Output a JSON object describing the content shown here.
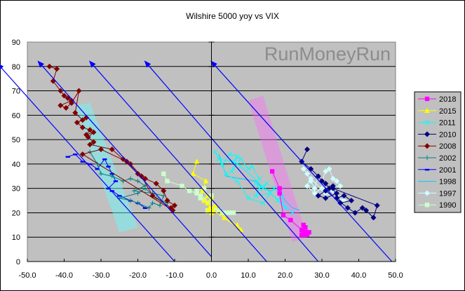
{
  "chart_data": {
    "type": "scatter",
    "title": "Wilshire 5000 yoy vs VIX",
    "xlabel": "",
    "ylabel": "",
    "xlim": [
      -50,
      50
    ],
    "ylim": [
      0,
      90
    ],
    "x_ticks": [
      "-50.0",
      "-40.0",
      "-30.0",
      "-20.0",
      "-10.0",
      "0.0",
      "10.0",
      "20.0",
      "30.0",
      "40.0",
      "50.0"
    ],
    "y_ticks": [
      "0",
      "10",
      "20",
      "30",
      "40",
      "50",
      "60",
      "70",
      "80",
      "90"
    ],
    "grid": "horizontal major gridlines",
    "legend_position": "right",
    "watermark": "RunMoneyRun",
    "background": "#c0c0c0",
    "series": [
      {
        "name": "2018",
        "color": "#ff00ff",
        "marker": "square",
        "points": [
          [
            16.5,
            37
          ],
          [
            18.5,
            30
          ],
          [
            18.5,
            28
          ],
          [
            19.5,
            19
          ],
          [
            21.5,
            17
          ],
          [
            24.5,
            13
          ],
          [
            24.5,
            11
          ],
          [
            25,
            15
          ],
          [
            25.5,
            12
          ],
          [
            26,
            11
          ],
          [
            25.5,
            14
          ],
          [
            26.5,
            12
          ],
          [
            25,
            11
          ]
        ]
      },
      {
        "name": "2015",
        "color": "#ffff00",
        "marker": "triangle",
        "points": [
          [
            -4,
            41
          ],
          [
            -5,
            36
          ],
          [
            -1.5,
            33
          ],
          [
            -2.5,
            29
          ],
          [
            -1,
            27
          ],
          [
            -2,
            25
          ],
          [
            -1,
            24
          ],
          [
            0,
            26
          ],
          [
            0,
            22
          ],
          [
            -1,
            21
          ],
          [
            0,
            20
          ],
          [
            1,
            23
          ],
          [
            3.5,
            18
          ],
          [
            7,
            15
          ],
          [
            8,
            13
          ],
          [
            -0.5,
            22
          ],
          [
            0.5,
            21
          ]
        ]
      },
      {
        "name": "2011",
        "color": "#00ffff",
        "marker": "x",
        "points": [
          [
            1,
            45
          ],
          [
            3,
            40
          ],
          [
            5,
            44
          ],
          [
            7,
            43
          ],
          [
            5.5,
            37
          ],
          [
            8,
            42
          ],
          [
            10,
            38
          ],
          [
            11,
            39
          ],
          [
            13,
            34
          ],
          [
            12,
            32
          ],
          [
            14,
            30
          ],
          [
            15,
            32
          ],
          [
            13,
            30
          ],
          [
            12,
            27
          ],
          [
            16,
            28
          ],
          [
            18,
            25
          ],
          [
            20,
            22
          ],
          [
            19,
            27
          ],
          [
            17,
            30
          ],
          [
            14,
            24
          ],
          [
            10,
            26
          ],
          [
            7,
            33
          ],
          [
            4,
            36
          ],
          [
            2,
            42
          ],
          [
            6,
            41
          ],
          [
            8,
            39
          ],
          [
            22,
            20
          ]
        ]
      },
      {
        "name": "2010",
        "color": "#000080",
        "marker": "diamond",
        "points": [
          [
            26,
            46
          ],
          [
            24.5,
            41
          ],
          [
            27,
            38
          ],
          [
            29,
            35
          ],
          [
            30,
            33
          ],
          [
            31,
            32
          ],
          [
            32,
            30
          ],
          [
            33,
            31
          ],
          [
            34,
            26
          ],
          [
            36,
            27
          ],
          [
            38,
            25
          ],
          [
            35,
            24
          ],
          [
            34,
            28
          ],
          [
            31,
            26
          ],
          [
            29,
            27
          ],
          [
            31,
            29
          ],
          [
            37,
            22
          ],
          [
            39,
            20
          ],
          [
            41,
            22
          ],
          [
            42,
            21
          ],
          [
            44,
            18
          ],
          [
            45,
            23
          ],
          [
            33,
            30
          ]
        ]
      },
      {
        "name": "2008",
        "color": "#800000",
        "marker": "diamond",
        "points": [
          [
            -44,
            80
          ],
          [
            -42,
            79
          ],
          [
            -43,
            74
          ],
          [
            -41,
            70
          ],
          [
            -40,
            68
          ],
          [
            -39,
            67
          ],
          [
            -38,
            66
          ],
          [
            -41,
            64
          ],
          [
            -39.5,
            63
          ],
          [
            -38,
            65
          ],
          [
            -36,
            70
          ],
          [
            -37,
            61
          ],
          [
            -35,
            58
          ],
          [
            -34,
            59
          ],
          [
            -36.5,
            57
          ],
          [
            -35,
            55
          ],
          [
            -33,
            54
          ],
          [
            -34,
            52
          ],
          [
            -32,
            53
          ],
          [
            -33.5,
            51
          ],
          [
            -32,
            49
          ],
          [
            -33,
            48
          ],
          [
            -27,
            46
          ],
          [
            -24,
            42
          ],
          [
            -20,
            36
          ],
          [
            -18,
            34
          ],
          [
            -15,
            32
          ],
          [
            -13,
            29
          ],
          [
            -12,
            25
          ],
          [
            -10,
            23
          ],
          [
            -11,
            22
          ],
          [
            -16,
            27
          ],
          [
            -19,
            35
          ],
          [
            -22,
            40
          ],
          [
            -23,
            41
          ],
          [
            -30,
            46
          ],
          [
            -35,
            44
          ],
          [
            -10.5,
            21
          ]
        ]
      },
      {
        "name": "2002",
        "color": "#008080",
        "marker": "plus",
        "points": [
          [
            -33,
            45
          ],
          [
            -31,
            40
          ],
          [
            -30,
            36
          ],
          [
            -27,
            35
          ],
          [
            -24,
            33
          ],
          [
            -22,
            34
          ],
          [
            -20,
            33
          ],
          [
            -18,
            31
          ],
          [
            -21,
            29
          ],
          [
            -16,
            28
          ],
          [
            -13,
            27
          ],
          [
            -14,
            23
          ],
          [
            -16,
            24
          ],
          [
            -17,
            22
          ],
          [
            -20,
            24
          ],
          [
            -22,
            25
          ],
          [
            -25,
            26
          ],
          [
            -20,
            28
          ],
          [
            -18,
            30
          ],
          [
            -15,
            26
          ],
          [
            -12,
            24
          ]
        ]
      },
      {
        "name": "2001",
        "color": "#0000ff",
        "marker": "dash",
        "points": [
          [
            -39,
            43
          ],
          [
            -37,
            44
          ],
          [
            -35,
            41
          ],
          [
            -33,
            40
          ],
          [
            -31,
            38
          ],
          [
            -29,
            42
          ],
          [
            -28,
            39
          ],
          [
            -27,
            36
          ],
          [
            -26,
            33
          ],
          [
            -28,
            30
          ],
          [
            -27,
            29
          ],
          [
            -25,
            27
          ],
          [
            -22,
            25
          ],
          [
            -20,
            24
          ],
          [
            -18,
            22
          ]
        ]
      },
      {
        "name": "1998",
        "color": "#00ccff",
        "marker": "none",
        "points": [
          [
            2,
            44
          ],
          [
            4,
            35
          ],
          [
            8,
            34
          ],
          [
            12,
            33
          ],
          [
            14,
            30
          ],
          [
            16,
            29
          ],
          [
            18,
            30
          ],
          [
            20,
            25
          ],
          [
            22,
            22
          ],
          [
            24,
            21
          ]
        ]
      },
      {
        "name": "1997",
        "color": "#ccffff",
        "marker": "diamond",
        "points": [
          [
            25,
            38
          ],
          [
            26,
            36
          ],
          [
            27,
            33
          ],
          [
            28,
            30
          ],
          [
            29,
            35
          ],
          [
            30,
            33
          ],
          [
            31,
            37
          ],
          [
            32,
            38
          ],
          [
            33,
            34
          ],
          [
            34,
            33
          ],
          [
            35,
            31
          ],
          [
            30,
            30
          ],
          [
            28,
            28
          ],
          [
            26,
            31
          ],
          [
            27,
            34
          ],
          [
            31,
            28
          ],
          [
            34,
            26
          ],
          [
            36,
            25
          ],
          [
            33,
            29
          ]
        ]
      },
      {
        "name": "1990",
        "color": "#ccffcc",
        "marker": "square",
        "points": [
          [
            -13,
            36
          ],
          [
            -12,
            33
          ],
          [
            -8,
            31
          ],
          [
            -6,
            29
          ],
          [
            -4,
            28
          ],
          [
            -3,
            27
          ],
          [
            -2,
            25
          ],
          [
            -1,
            24
          ],
          [
            0,
            27
          ],
          [
            -3,
            26
          ],
          [
            -4,
            29
          ],
          [
            -2,
            30
          ],
          [
            1,
            22
          ],
          [
            2,
            21
          ],
          [
            3,
            20
          ],
          [
            4,
            20
          ],
          [
            5,
            20
          ],
          [
            6,
            20
          ],
          [
            -1,
            21
          ]
        ]
      }
    ],
    "annotations": {
      "arrows": [
        {
          "from": [
            -10,
            0
          ],
          "to": [
            -58,
            81
          ],
          "color": "#0000ff"
        },
        {
          "from": [
            0,
            2
          ],
          "to": [
            -47,
            82
          ],
          "color": "#0000ff"
        },
        {
          "from": [
            15,
            0
          ],
          "to": [
            -33,
            82
          ],
          "color": "#0000ff"
        },
        {
          "from": [
            29,
            0
          ],
          "to": [
            -18,
            82
          ],
          "color": "#0000ff"
        },
        {
          "from": [
            49,
            0
          ],
          "to": [
            0,
            82
          ],
          "color": "#0000ff"
        }
      ],
      "bands": [
        {
          "color": "#66ffff",
          "opacity": 0.45,
          "polygon": [
            [
              -37,
              64
            ],
            [
              -33,
              65
            ],
            [
              -20,
              14
            ],
            [
              -25,
              12
            ]
          ]
        },
        {
          "color": "#ff66ff",
          "opacity": 0.4,
          "polygon": [
            [
              10,
              66
            ],
            [
              14,
              68
            ],
            [
              26,
              10
            ],
            [
              22,
              8
            ]
          ]
        }
      ]
    }
  }
}
